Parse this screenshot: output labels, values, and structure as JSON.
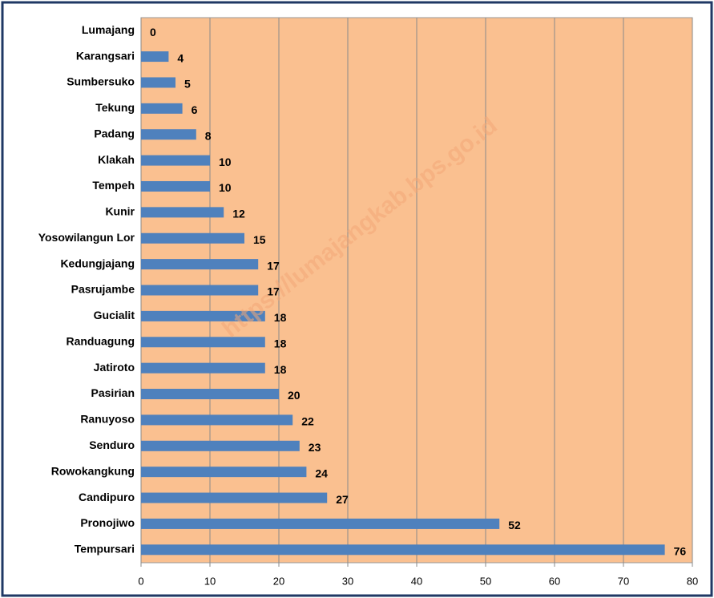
{
  "chart_data": {
    "type": "bar",
    "orientation": "horizontal",
    "watermark": "https://lumajangkab.bps.go.id",
    "categories": [
      "Lumajang",
      "Karangsari",
      "Sumbersuko",
      "Tekung",
      "Padang",
      "Klakah",
      "Tempeh",
      "Kunir",
      "Yosowilangun Lor",
      "Kedungjajang",
      "Pasrujambe",
      "Gucialit",
      "Randuagung",
      "Jatiroto",
      "Pasirian",
      "Ranuyoso",
      "Senduro",
      "Rowokangkung",
      "Candipuro",
      "Pronojiwo",
      "Tempursari"
    ],
    "values": [
      0,
      4,
      5,
      6,
      8,
      10,
      10,
      12,
      15,
      17,
      17,
      18,
      18,
      18,
      20,
      22,
      23,
      24,
      27,
      52,
      76
    ],
    "color": "#4f81bd",
    "plot_background": "#fac090",
    "xlim": [
      0,
      80
    ],
    "xticks": [
      0,
      10,
      20,
      30,
      40,
      50,
      60,
      70,
      80
    ],
    "grid": true
  }
}
